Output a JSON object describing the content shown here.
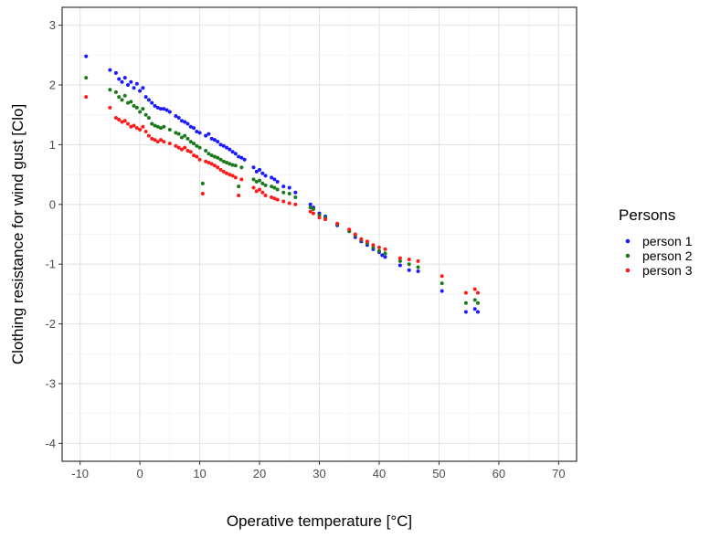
{
  "chart_data": {
    "type": "scatter",
    "xlabel": "Operative temperature [°C]",
    "ylabel": "Clothing resistance for wind gust [Clo]",
    "xlim": [
      -13,
      73
    ],
    "ylim": [
      -4.3,
      3.3
    ],
    "x_ticks": [
      -10,
      0,
      10,
      20,
      30,
      40,
      50,
      60,
      70
    ],
    "y_ticks": [
      -4,
      -3,
      -2,
      -1,
      0,
      1,
      2,
      3
    ],
    "grid": true,
    "legend": {
      "title": "Persons",
      "position": "right"
    },
    "series": [
      {
        "name": "person 1",
        "color": "#1a1aff",
        "points": [
          [
            -9,
            2.48
          ],
          [
            -5,
            2.25
          ],
          [
            -4,
            2.2
          ],
          [
            -3.5,
            2.1
          ],
          [
            -3,
            2.05
          ],
          [
            -2.5,
            2.12
          ],
          [
            -2,
            2.0
          ],
          [
            -1.5,
            2.05
          ],
          [
            -1,
            1.95
          ],
          [
            -0.5,
            2.02
          ],
          [
            0,
            1.9
          ],
          [
            0.5,
            1.95
          ],
          [
            1,
            1.8
          ],
          [
            1.5,
            1.75
          ],
          [
            2,
            1.7
          ],
          [
            2.5,
            1.65
          ],
          [
            3,
            1.62
          ],
          [
            3.5,
            1.6
          ],
          [
            4,
            1.6
          ],
          [
            4.5,
            1.58
          ],
          [
            5,
            1.55
          ],
          [
            6,
            1.48
          ],
          [
            6.5,
            1.45
          ],
          [
            7,
            1.4
          ],
          [
            7.5,
            1.38
          ],
          [
            8,
            1.35
          ],
          [
            8.5,
            1.3
          ],
          [
            9,
            1.28
          ],
          [
            9.5,
            1.22
          ],
          [
            10,
            1.2
          ],
          [
            11,
            1.15
          ],
          [
            11.5,
            1.18
          ],
          [
            12,
            1.1
          ],
          [
            12.5,
            1.08
          ],
          [
            13,
            1.05
          ],
          [
            13.5,
            1.0
          ],
          [
            14,
            0.98
          ],
          [
            14.5,
            0.95
          ],
          [
            15,
            0.92
          ],
          [
            15.5,
            0.88
          ],
          [
            16,
            0.85
          ],
          [
            16.5,
            0.8
          ],
          [
            17,
            0.78
          ],
          [
            17.5,
            0.75
          ],
          [
            19,
            0.62
          ],
          [
            19.5,
            0.55
          ],
          [
            20,
            0.58
          ],
          [
            20.5,
            0.52
          ],
          [
            21,
            0.48
          ],
          [
            22,
            0.45
          ],
          [
            22.5,
            0.42
          ],
          [
            23,
            0.38
          ],
          [
            24,
            0.3
          ],
          [
            25,
            0.28
          ],
          [
            26,
            0.2
          ],
          [
            28.5,
            0.0
          ],
          [
            29,
            -0.05
          ],
          [
            30,
            -0.15
          ],
          [
            31,
            -0.2
          ],
          [
            33,
            -0.35
          ],
          [
            35,
            -0.45
          ],
          [
            36,
            -0.55
          ],
          [
            37,
            -0.62
          ],
          [
            38,
            -0.68
          ],
          [
            39,
            -0.75
          ],
          [
            40,
            -0.8
          ],
          [
            40.5,
            -0.85
          ],
          [
            41,
            -0.88
          ],
          [
            43.5,
            -1.02
          ],
          [
            45,
            -1.1
          ],
          [
            46.5,
            -1.12
          ],
          [
            50.5,
            -1.45
          ],
          [
            54.5,
            -1.8
          ],
          [
            56,
            -1.75
          ],
          [
            56.5,
            -1.8
          ]
        ]
      },
      {
        "name": "person 2",
        "color": "#1a7a1a",
        "points": [
          [
            -9,
            2.12
          ],
          [
            -5,
            1.92
          ],
          [
            -4,
            1.88
          ],
          [
            -3.5,
            1.8
          ],
          [
            -3,
            1.75
          ],
          [
            -2.5,
            1.82
          ],
          [
            -2,
            1.7
          ],
          [
            -1.5,
            1.72
          ],
          [
            -1,
            1.65
          ],
          [
            -0.5,
            1.62
          ],
          [
            0,
            1.55
          ],
          [
            0.5,
            1.6
          ],
          [
            1,
            1.5
          ],
          [
            1.5,
            1.45
          ],
          [
            2,
            1.35
          ],
          [
            2.5,
            1.32
          ],
          [
            3,
            1.3
          ],
          [
            3.5,
            1.28
          ],
          [
            4,
            1.3
          ],
          [
            5,
            1.25
          ],
          [
            6,
            1.2
          ],
          [
            6.5,
            1.18
          ],
          [
            7,
            1.12
          ],
          [
            7.5,
            1.15
          ],
          [
            8,
            1.1
          ],
          [
            8.5,
            1.05
          ],
          [
            9,
            1.02
          ],
          [
            9.5,
            0.98
          ],
          [
            10,
            0.95
          ],
          [
            10.5,
            0.35
          ],
          [
            11,
            0.9
          ],
          [
            11.5,
            0.85
          ],
          [
            12,
            0.82
          ],
          [
            12.5,
            0.8
          ],
          [
            13,
            0.78
          ],
          [
            13.5,
            0.75
          ],
          [
            14,
            0.72
          ],
          [
            14.5,
            0.7
          ],
          [
            15,
            0.68
          ],
          [
            15.5,
            0.66
          ],
          [
            16,
            0.65
          ],
          [
            16.5,
            0.3
          ],
          [
            17,
            0.62
          ],
          [
            19,
            0.42
          ],
          [
            19.5,
            0.38
          ],
          [
            20,
            0.4
          ],
          [
            20.5,
            0.35
          ],
          [
            21,
            0.32
          ],
          [
            22,
            0.3
          ],
          [
            22.5,
            0.28
          ],
          [
            23,
            0.25
          ],
          [
            24,
            0.2
          ],
          [
            25,
            0.18
          ],
          [
            26,
            0.12
          ],
          [
            28.5,
            -0.05
          ],
          [
            29,
            -0.08
          ],
          [
            30,
            -0.18
          ],
          [
            31,
            -0.22
          ],
          [
            33,
            -0.33
          ],
          [
            35,
            -0.45
          ],
          [
            36,
            -0.52
          ],
          [
            37,
            -0.6
          ],
          [
            38,
            -0.65
          ],
          [
            39,
            -0.72
          ],
          [
            40,
            -0.78
          ],
          [
            41,
            -0.82
          ],
          [
            43.5,
            -0.95
          ],
          [
            45,
            -1.0
          ],
          [
            46.5,
            -1.05
          ],
          [
            50.5,
            -1.32
          ],
          [
            54.5,
            -1.65
          ],
          [
            56,
            -1.6
          ],
          [
            56.5,
            -1.65
          ]
        ]
      },
      {
        "name": "person 3",
        "color": "#ff1a1a",
        "points": [
          [
            -9,
            1.8
          ],
          [
            -5,
            1.62
          ],
          [
            -4,
            1.45
          ],
          [
            -3.5,
            1.42
          ],
          [
            -3,
            1.38
          ],
          [
            -2.5,
            1.4
          ],
          [
            -2,
            1.35
          ],
          [
            -1.5,
            1.3
          ],
          [
            -1,
            1.32
          ],
          [
            -0.5,
            1.28
          ],
          [
            0,
            1.25
          ],
          [
            0.5,
            1.3
          ],
          [
            1,
            1.22
          ],
          [
            1.5,
            1.15
          ],
          [
            2,
            1.1
          ],
          [
            2.5,
            1.08
          ],
          [
            3,
            1.05
          ],
          [
            3.5,
            1.08
          ],
          [
            4,
            1.05
          ],
          [
            5,
            1.02
          ],
          [
            6,
            0.98
          ],
          [
            6.5,
            0.95
          ],
          [
            7,
            0.92
          ],
          [
            7.5,
            0.95
          ],
          [
            8,
            0.9
          ],
          [
            8.5,
            0.88
          ],
          [
            9,
            0.82
          ],
          [
            9.5,
            0.8
          ],
          [
            10,
            0.75
          ],
          [
            10.5,
            0.18
          ],
          [
            11,
            0.72
          ],
          [
            11.5,
            0.7
          ],
          [
            12,
            0.68
          ],
          [
            12.5,
            0.65
          ],
          [
            13,
            0.62
          ],
          [
            13.5,
            0.58
          ],
          [
            14,
            0.55
          ],
          [
            14.5,
            0.52
          ],
          [
            15,
            0.5
          ],
          [
            15.5,
            0.48
          ],
          [
            16,
            0.45
          ],
          [
            16.5,
            0.15
          ],
          [
            17,
            0.42
          ],
          [
            19,
            0.28
          ],
          [
            19.5,
            0.22
          ],
          [
            20,
            0.25
          ],
          [
            20.5,
            0.2
          ],
          [
            21,
            0.15
          ],
          [
            22,
            0.12
          ],
          [
            22.5,
            0.1
          ],
          [
            23,
            0.08
          ],
          [
            24,
            0.05
          ],
          [
            25,
            0.02
          ],
          [
            26,
            0.0
          ],
          [
            28.5,
            -0.12
          ],
          [
            29,
            -0.15
          ],
          [
            30,
            -0.22
          ],
          [
            31,
            -0.25
          ],
          [
            33,
            -0.32
          ],
          [
            35,
            -0.42
          ],
          [
            36,
            -0.5
          ],
          [
            37,
            -0.58
          ],
          [
            38,
            -0.62
          ],
          [
            39,
            -0.68
          ],
          [
            40,
            -0.72
          ],
          [
            41,
            -0.75
          ],
          [
            43.5,
            -0.9
          ],
          [
            45,
            -0.92
          ],
          [
            46.5,
            -0.95
          ],
          [
            50.5,
            -1.2
          ],
          [
            54.5,
            -1.48
          ],
          [
            56,
            -1.42
          ],
          [
            56.5,
            -1.48
          ]
        ]
      }
    ]
  }
}
